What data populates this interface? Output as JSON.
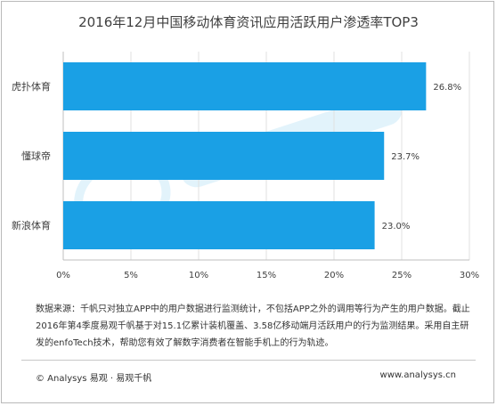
{
  "chart_data": {
    "type": "bar",
    "orientation": "horizontal",
    "title": "2016年12月中国移动体育资讯应用活跃用户渗透率TOP3",
    "categories": [
      "虎扑体育",
      "懂球帝",
      "新浪体育"
    ],
    "values": [
      26.8,
      23.7,
      23.0
    ],
    "data_labels": [
      "26.8%",
      "23.7%",
      "23.0%"
    ],
    "xlim": [
      0,
      30
    ],
    "xticks": [
      0,
      5,
      10,
      15,
      20,
      25,
      30
    ],
    "xtick_labels": [
      "0%",
      "5%",
      "10%",
      "15%",
      "20%",
      "25%",
      "30%"
    ],
    "bar_color": "#1aa0e5",
    "grid": true
  },
  "footer": {
    "source_text": "数据来源：千帆只对独立APP中的用户数据进行监测统计，不包括APP之外的调用等行为产生的用户数据。截止2016年第4季度易观千帆基于对15.1亿累计装机覆盖、3.58亿移动端月活跃用户的行为监测结果。采用自主研发的enfoTech技术，帮助您有效了解数字消费者在智能手机上的行为轨迹。",
    "brand": "© Analysys 易观 · 易观千帆",
    "website": "www.analysys.cn"
  }
}
